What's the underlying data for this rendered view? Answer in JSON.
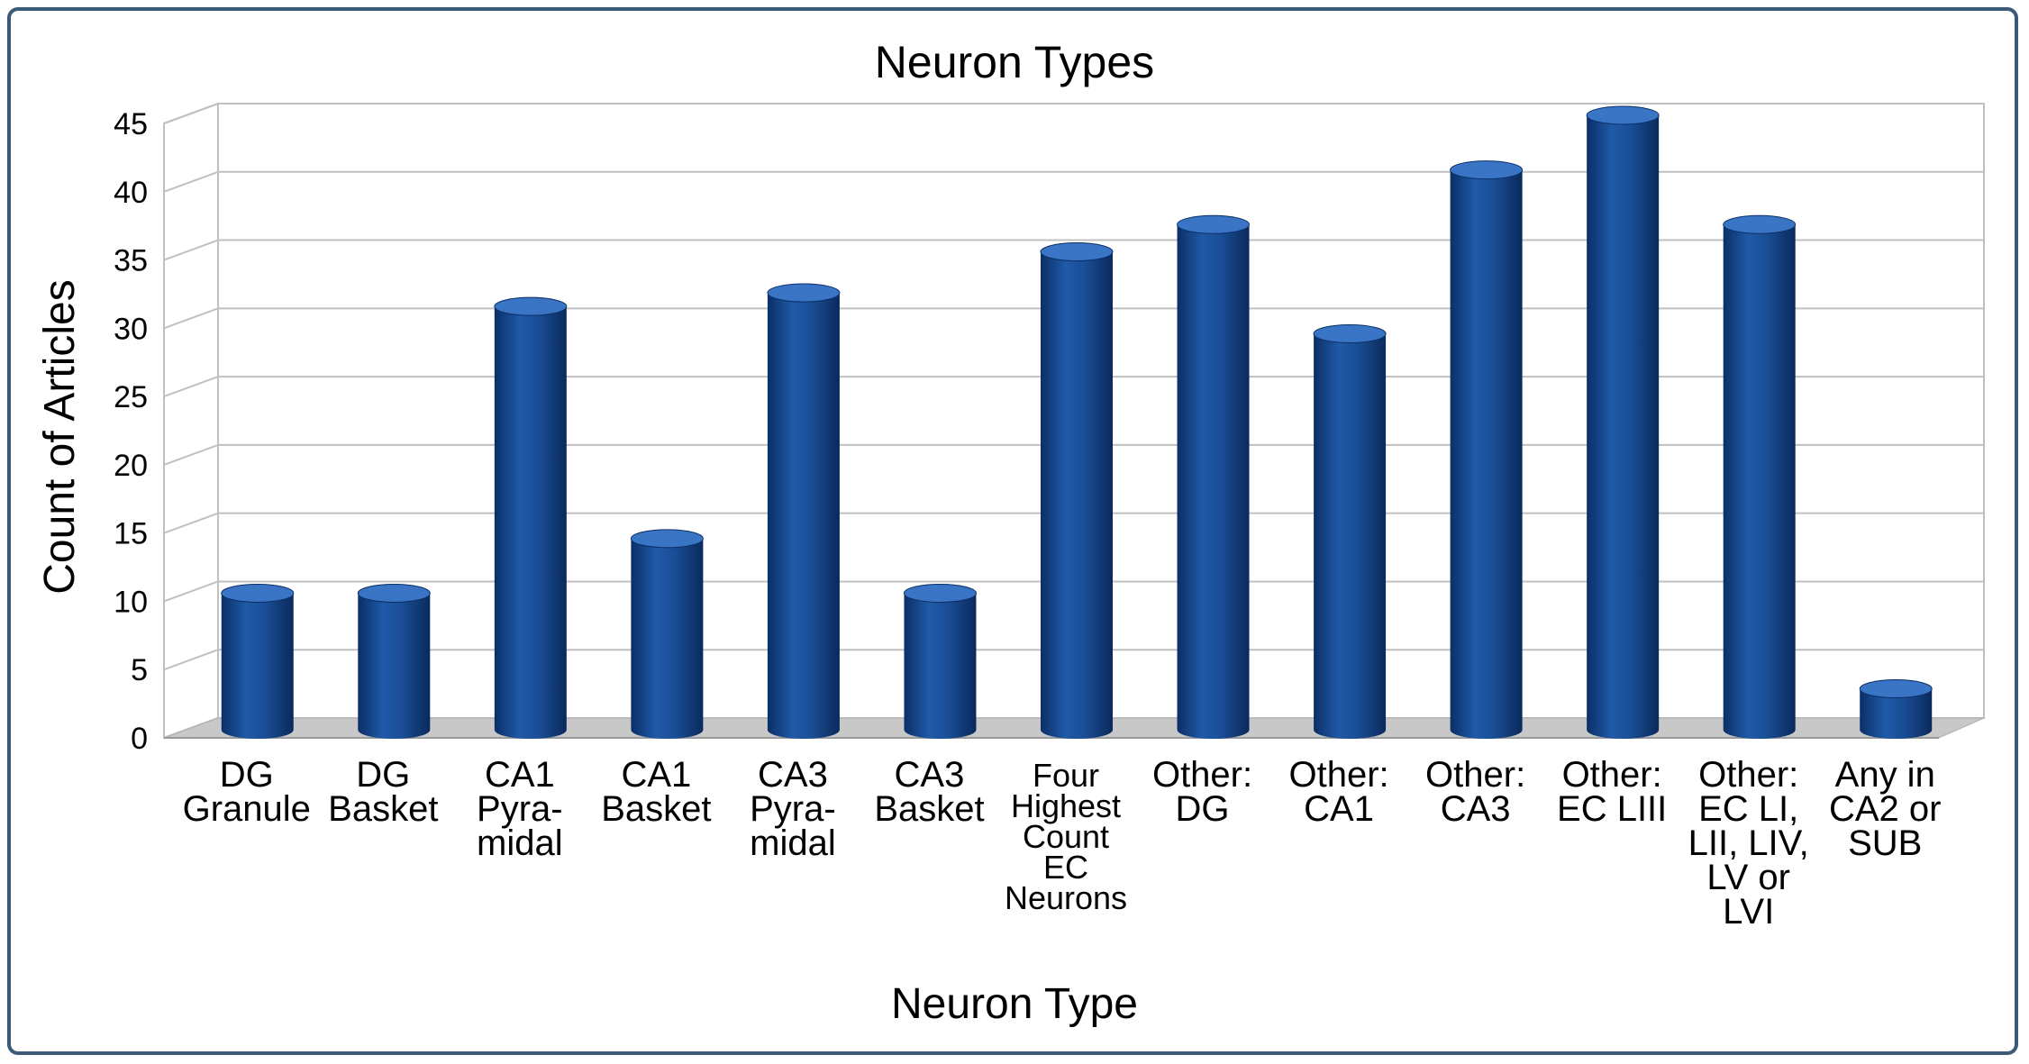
{
  "chart_data": {
    "type": "bar",
    "title": "Neuron Types",
    "xlabel": "Neuron Type",
    "ylabel": "Count of Articles",
    "ylim": [
      0,
      45
    ],
    "yticks": [
      "0",
      "5",
      "10",
      "15",
      "20",
      "25",
      "30",
      "35",
      "40",
      "45"
    ],
    "grid": true,
    "categories": [
      "DG Granule",
      "DG Basket",
      "CA1 Pyra-midal",
      "CA1 Basket",
      "CA3 Pyra-midal",
      "CA3 Basket",
      "Four Highest Count EC Neurons",
      "Other: DG",
      "Other: CA1",
      "Other: CA3",
      "Other: EC LIII",
      "Other: EC LI, LII, LIV, LV or LVI",
      "Any in CA2 or SUB"
    ],
    "category_lines": [
      [
        "DG",
        "Granule"
      ],
      [
        "DG",
        "Basket"
      ],
      [
        "CA1",
        "Pyra-",
        "midal"
      ],
      [
        "CA1",
        "Basket"
      ],
      [
        "CA3",
        "Pyra-",
        "midal"
      ],
      [
        "CA3",
        "Basket"
      ],
      [
        "Four",
        "Highest",
        "Count",
        "EC",
        "Neurons"
      ],
      [
        "Other:",
        "DG"
      ],
      [
        "Other:",
        "CA1"
      ],
      [
        "Other:",
        "CA3"
      ],
      [
        "Other:",
        "EC LIII"
      ],
      [
        "Other:",
        "EC LI,",
        "LII, LIV,",
        "LV or",
        "LVI"
      ],
      [
        "Any in",
        "CA2 or",
        "SUB"
      ]
    ],
    "values": [
      10,
      10,
      31,
      14,
      32,
      10,
      35,
      37,
      29,
      41,
      45,
      37,
      3
    ],
    "colors": {
      "bar": "#1a4e96",
      "bar_dark": "#0b2f66",
      "bar_light": "#3a74c4",
      "floor": "#c8c8c8",
      "grid": "#c0c0c0",
      "frame": "#3a5a78"
    }
  }
}
